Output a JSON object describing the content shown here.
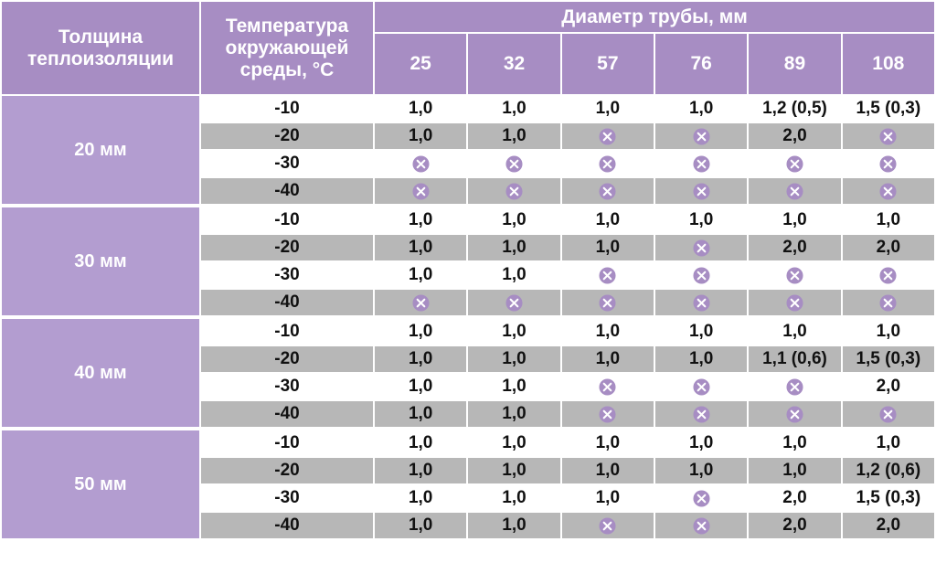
{
  "table": {
    "header": {
      "thickness": "Толщина теплоизоляции",
      "temperature": "Температура окружающей среды, °С",
      "diameter": "Диаметр трубы, мм",
      "diameters": [
        "25",
        "32",
        "57",
        "76",
        "89",
        "108"
      ]
    },
    "groups": [
      {
        "thickness": "20 мм",
        "rows": [
          {
            "temperature": "-10",
            "cells": [
              "1,0",
              "1,0",
              "1,0",
              "1,0",
              "1,2 (0,5)",
              "1,5 (0,3)"
            ]
          },
          {
            "temperature": "-20",
            "cells": [
              "1,0",
              "1,0",
              null,
              null,
              "2,0",
              null
            ]
          },
          {
            "temperature": "-30",
            "cells": [
              null,
              null,
              null,
              null,
              null,
              null
            ]
          },
          {
            "temperature": "-40",
            "cells": [
              null,
              null,
              null,
              null,
              null,
              null
            ]
          }
        ]
      },
      {
        "thickness": "30 мм",
        "rows": [
          {
            "temperature": "-10",
            "cells": [
              "1,0",
              "1,0",
              "1,0",
              "1,0",
              "1,0",
              "1,0"
            ]
          },
          {
            "temperature": "-20",
            "cells": [
              "1,0",
              "1,0",
              "1,0",
              null,
              "2,0",
              "2,0"
            ]
          },
          {
            "temperature": "-30",
            "cells": [
              "1,0",
              "1,0",
              null,
              null,
              null,
              null
            ]
          },
          {
            "temperature": "-40",
            "cells": [
              null,
              null,
              null,
              null,
              null,
              null
            ]
          }
        ]
      },
      {
        "thickness": "40 мм",
        "rows": [
          {
            "temperature": "-10",
            "cells": [
              "1,0",
              "1,0",
              "1,0",
              "1,0",
              "1,0",
              "1,0"
            ]
          },
          {
            "temperature": "-20",
            "cells": [
              "1,0",
              "1,0",
              "1,0",
              "1,0",
              "1,1 (0,6)",
              "1,5 (0,3)"
            ]
          },
          {
            "temperature": "-30",
            "cells": [
              "1,0",
              "1,0",
              null,
              null,
              null,
              "2,0"
            ]
          },
          {
            "temperature": "-40",
            "cells": [
              "1,0",
              "1,0",
              null,
              null,
              null,
              null
            ]
          }
        ]
      },
      {
        "thickness": "50 мм",
        "rows": [
          {
            "temperature": "-10",
            "cells": [
              "1,0",
              "1,0",
              "1,0",
              "1,0",
              "1,0",
              "1,0"
            ]
          },
          {
            "temperature": "-20",
            "cells": [
              "1,0",
              "1,0",
              "1,0",
              "1,0",
              "1,0",
              "1,2 (0,6)"
            ]
          },
          {
            "temperature": "-30",
            "cells": [
              "1,0",
              "1,0",
              "1,0",
              null,
              "2,0",
              "1,5 (0,3)"
            ]
          },
          {
            "temperature": "-40",
            "cells": [
              "1,0",
              "1,0",
              null,
              null,
              "2,0",
              "2,0"
            ]
          }
        ]
      }
    ]
  }
}
